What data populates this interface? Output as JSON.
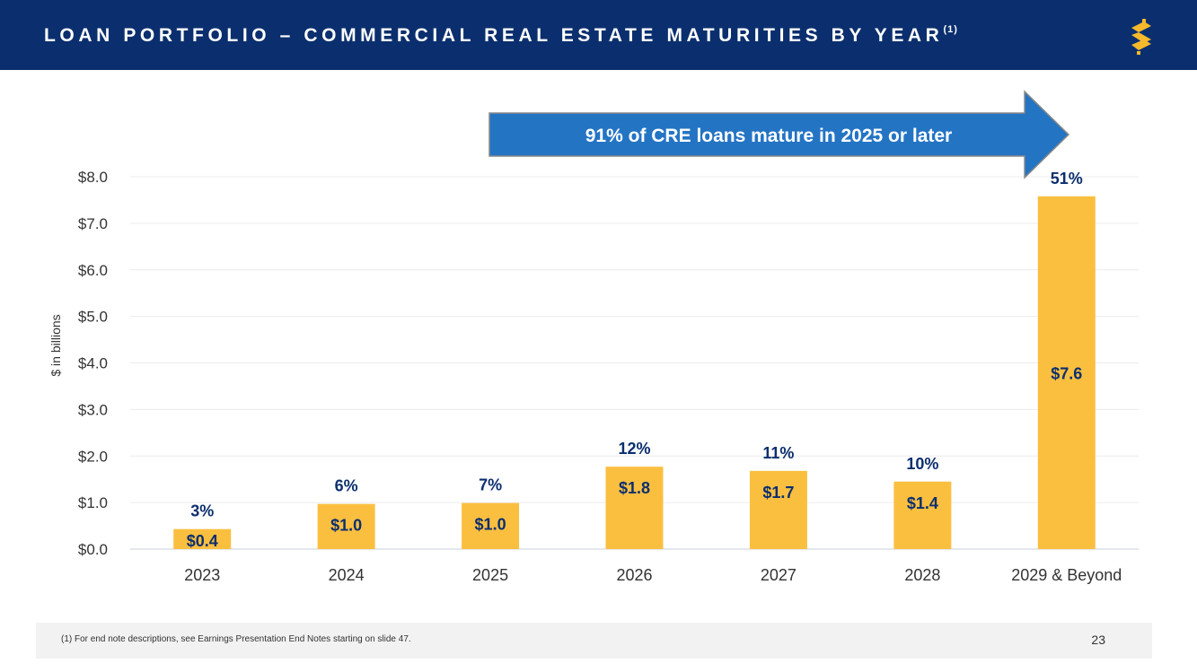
{
  "header": {
    "title": "LOAN PORTFOLIO – COMMERCIAL REAL ESTATE MATURITIES BY YEAR",
    "title_sup": "(1)",
    "background": "#0b2f6e",
    "logo_icon": "dollar-s-logo-icon",
    "logo_color": "#f6b92b"
  },
  "callout": {
    "text": "91% of CRE loans mature in 2025 or later",
    "color": "#2474c4"
  },
  "chart_data": {
    "type": "bar",
    "ylabel": "$ in billions",
    "xlabel": "",
    "ylim": [
      0,
      8
    ],
    "yticks": [
      0,
      1,
      2,
      3,
      4,
      5,
      6,
      7,
      8
    ],
    "ytick_labels": [
      "$0.0",
      "$1.0",
      "$2.0",
      "$3.0",
      "$4.0",
      "$5.0",
      "$6.0",
      "$7.0",
      "$8.0"
    ],
    "categories": [
      "2023",
      "2024",
      "2025",
      "2026",
      "2027",
      "2028",
      "2029 & Beyond"
    ],
    "values": [
      0.43,
      0.97,
      0.99,
      1.77,
      1.68,
      1.45,
      7.58
    ],
    "value_labels": [
      "$0.4",
      "$1.0",
      "$1.0",
      "$1.8",
      "$1.7",
      "$1.4",
      "$7.6"
    ],
    "percent_labels": [
      "3%",
      "6%",
      "7%",
      "12%",
      "11%",
      "10%",
      "51%"
    ],
    "bar_color": "#fbbf40",
    "label_color": "#0b2f6e",
    "grid": true
  },
  "footer": {
    "footnote": "(1)   For end note descriptions, see Earnings Presentation End Notes starting on slide 47.",
    "page_number": "23"
  }
}
